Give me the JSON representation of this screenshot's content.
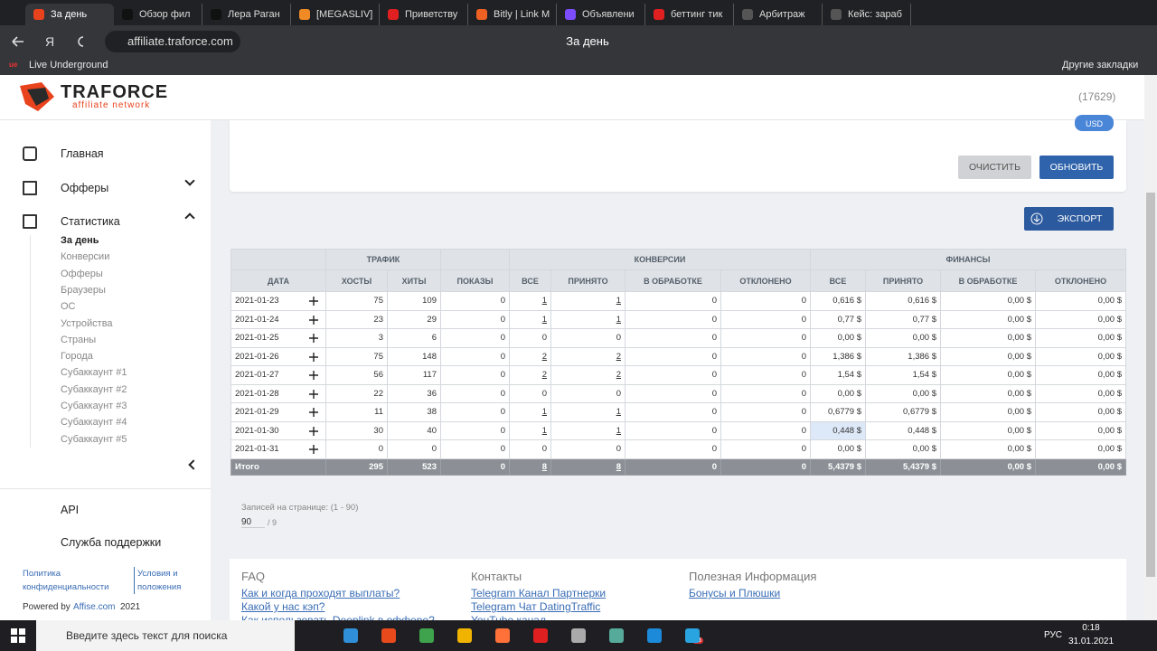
{
  "browser": {
    "tabs": [
      "За день",
      "Обзор фил",
      "Лера Раган",
      "[MEGASLIV]",
      "Приветству",
      "Bitly | Link M",
      "Объявлени",
      "беттинг тик",
      "Арбитраж",
      "Кейс: зараб"
    ],
    "url": "affiliate.traforce.com",
    "page_title": "За день",
    "bookmark": "Live Underground",
    "other_bookmarks": "Другие закладки"
  },
  "header": {
    "brand": "TRAFORCE",
    "tagline": "affiliate network",
    "account": "(17629)"
  },
  "sidebar": {
    "nav": [
      "Главная",
      "Офферы",
      "Статистика"
    ],
    "stats_sub": [
      "За день",
      "Конверсии",
      "Офферы",
      "Браузеры",
      "ОС",
      "Устройства",
      "Страны",
      "Города",
      "Субаккаунт #1",
      "Субаккаунт #2",
      "Субаккаунт #3",
      "Субаккаунт #4",
      "Субаккаунт #5"
    ],
    "api": "API",
    "support": "Служба поддержки",
    "privacy": "Политика конфиденциальности",
    "terms": "Условия и положения",
    "powered_by": "Powered by",
    "affise": "Affise.com",
    "year": "2021"
  },
  "filters": {
    "currency": "USD",
    "clear": "ОЧИСТИТЬ",
    "refresh": "ОБНОВИТЬ",
    "export": "ЭКСПОРТ"
  },
  "table": {
    "groups": [
      "ТРАФИК",
      "КОНВЕРСИИ",
      "ФИНАНСЫ"
    ],
    "columns": [
      "ДАТА",
      "ХОСТЫ",
      "ХИТЫ",
      "ПОКАЗЫ",
      "ВСЕ",
      "ПРИНЯТО",
      "В ОБРАБОТКЕ",
      "ОТКЛОНЕНО",
      "ВСЕ",
      "ПРИНЯТО",
      "В ОБРАБОТКЕ",
      "ОТКЛОНЕНО"
    ],
    "rows": [
      [
        "2021-01-23",
        "75",
        "109",
        "0",
        "1",
        "1",
        "0",
        "0",
        "0,616 $",
        "0,616 $",
        "0,00 $",
        "0,00 $"
      ],
      [
        "2021-01-24",
        "23",
        "29",
        "0",
        "1",
        "1",
        "0",
        "0",
        "0,77 $",
        "0,77 $",
        "0,00 $",
        "0,00 $"
      ],
      [
        "2021-01-25",
        "3",
        "6",
        "0",
        "0",
        "0",
        "0",
        "0",
        "0,00 $",
        "0,00 $",
        "0,00 $",
        "0,00 $"
      ],
      [
        "2021-01-26",
        "75",
        "148",
        "0",
        "2",
        "2",
        "0",
        "0",
        "1,386 $",
        "1,386 $",
        "0,00 $",
        "0,00 $"
      ],
      [
        "2021-01-27",
        "56",
        "117",
        "0",
        "2",
        "2",
        "0",
        "0",
        "1,54 $",
        "1,54 $",
        "0,00 $",
        "0,00 $"
      ],
      [
        "2021-01-28",
        "22",
        "36",
        "0",
        "0",
        "0",
        "0",
        "0",
        "0,00 $",
        "0,00 $",
        "0,00 $",
        "0,00 $"
      ],
      [
        "2021-01-29",
        "11",
        "38",
        "0",
        "1",
        "1",
        "0",
        "0",
        "0,6779 $",
        "0,6779 $",
        "0,00 $",
        "0,00 $"
      ],
      [
        "2021-01-30",
        "30",
        "40",
        "0",
        "1",
        "1",
        "0",
        "0",
        "0,448 $",
        "0,448 $",
        "0,00 $",
        "0,00 $"
      ],
      [
        "2021-01-31",
        "0",
        "0",
        "0",
        "0",
        "0",
        "0",
        "0",
        "0,00 $",
        "0,00 $",
        "0,00 $",
        "0,00 $"
      ]
    ],
    "total": [
      "Итого",
      "295",
      "523",
      "0",
      "8",
      "8",
      "0",
      "0",
      "5,4379 $",
      "5,4379 $",
      "0,00 $",
      "0,00 $"
    ]
  },
  "pagination": {
    "label": "Записей на странице: (1 - 90)",
    "per_page": "90",
    "pages": "/ 9"
  },
  "footer": {
    "faq": {
      "title": "FAQ",
      "links": [
        "Как и когда проходят выплаты?",
        "Какой у нас кэп?",
        "Как использовать Deeplink в оффере?"
      ]
    },
    "contacts": {
      "title": "Контакты",
      "links": [
        "Telegram Канал Партнерки",
        "Telegram Чат DatingTraffic",
        "YouTube канал"
      ]
    },
    "info": {
      "title": "Полезная Информация",
      "links": [
        "Бонусы и Плюшки"
      ]
    }
  },
  "taskbar": {
    "search": "Введите здесь текст для поиска",
    "lang": "РУС",
    "time": "0:18",
    "date": "31.01.2021",
    "badge": "23"
  }
}
